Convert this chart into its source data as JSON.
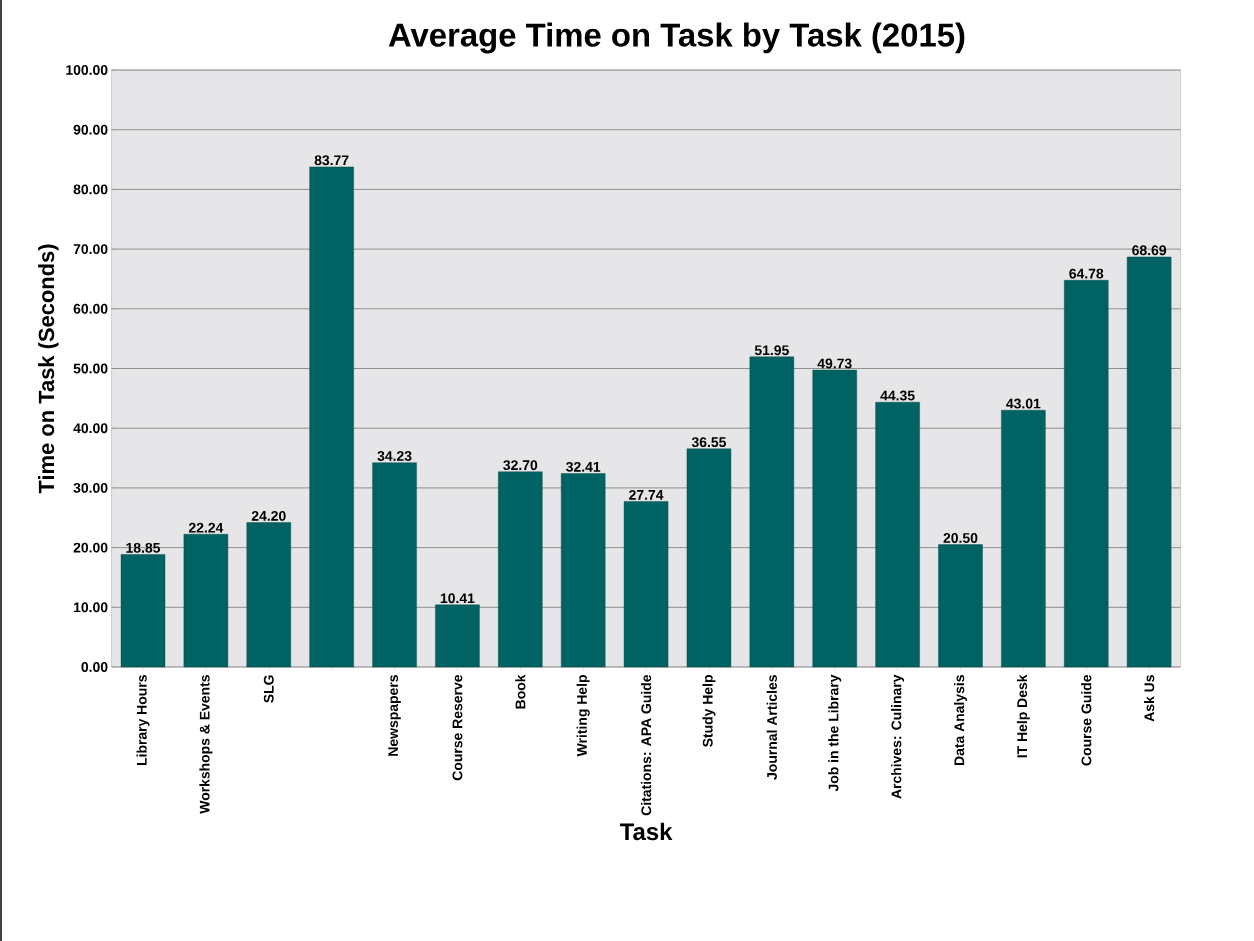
{
  "chart_data": {
    "type": "bar",
    "title": "Average Time on Task by Task (2015)",
    "xlabel": "Task",
    "ylabel": "Time on Task (Seconds)",
    "categories": [
      "Library Hours",
      "Workshops & Events",
      "SLG",
      null,
      "Newspapers",
      "Course Reserve",
      "Book",
      "Writing Help",
      "Citations: APA Guide",
      "Study Help",
      "Journal Articles",
      "Job in the Library",
      "Archives: Culinary",
      "Data Analysis",
      "IT Help Desk",
      "Course Guide",
      "Ask Us"
    ],
    "values": [
      18.85,
      22.24,
      24.2,
      83.77,
      34.23,
      10.41,
      32.7,
      32.41,
      27.74,
      36.55,
      51.95,
      49.73,
      44.35,
      20.5,
      43.01,
      64.78,
      68.69
    ],
    "value_labels": [
      "18.85",
      "22.24",
      "24.20",
      "83.77",
      "34.23",
      "10.41",
      "32.70",
      "32.41",
      "27.74",
      "36.55",
      "51.95",
      "49.73",
      "44.35",
      "20.50",
      "43.01",
      "64.78",
      "68.69"
    ],
    "color": "#006262",
    "ylim": [
      0,
      100
    ],
    "yticks": [
      {
        "value": 0,
        "label": "0.00"
      },
      {
        "value": 10,
        "label": "10.00"
      },
      {
        "value": 20,
        "label": "20.00"
      },
      {
        "value": 30,
        "label": "30.00"
      },
      {
        "value": 40,
        "label": "40.00"
      },
      {
        "value": 50,
        "label": "50.00"
      },
      {
        "value": 60,
        "label": "60.00"
      },
      {
        "value": 70,
        "label": "70.00"
      },
      {
        "value": 80,
        "label": "80.00"
      },
      {
        "value": 90,
        "label": "90.00"
      },
      {
        "value": 100,
        "label": "100.00"
      }
    ],
    "grid": "y"
  }
}
